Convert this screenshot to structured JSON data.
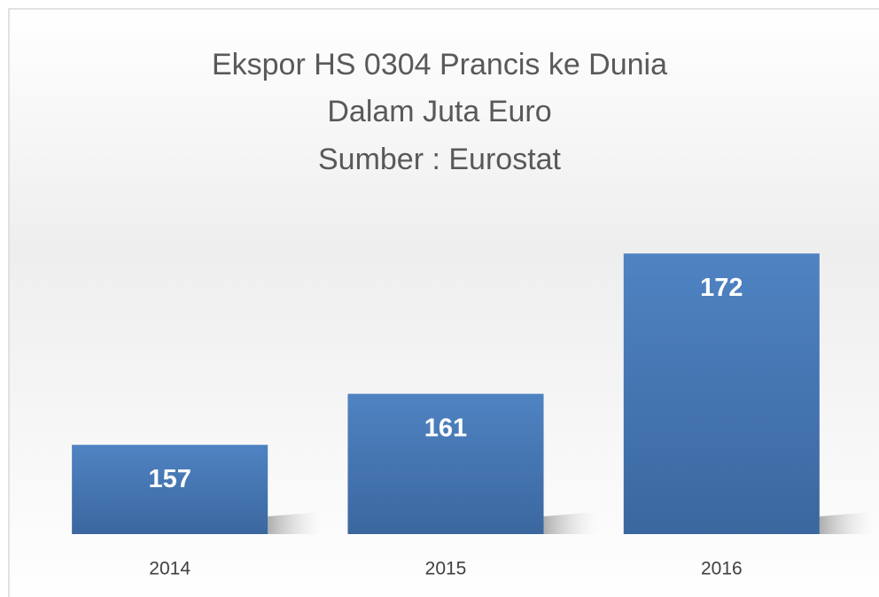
{
  "chart_data": {
    "type": "bar",
    "title": "Ekspor HS 0304 Prancis ke Dunia",
    "subtitle": "Dalam Juta Euro",
    "source": "Sumber : Eurostat",
    "categories": [
      "2014",
      "2015",
      "2016"
    ],
    "values": [
      157,
      161,
      172
    ],
    "color": "#4a7dba",
    "ylim": [
      150,
      175
    ]
  }
}
